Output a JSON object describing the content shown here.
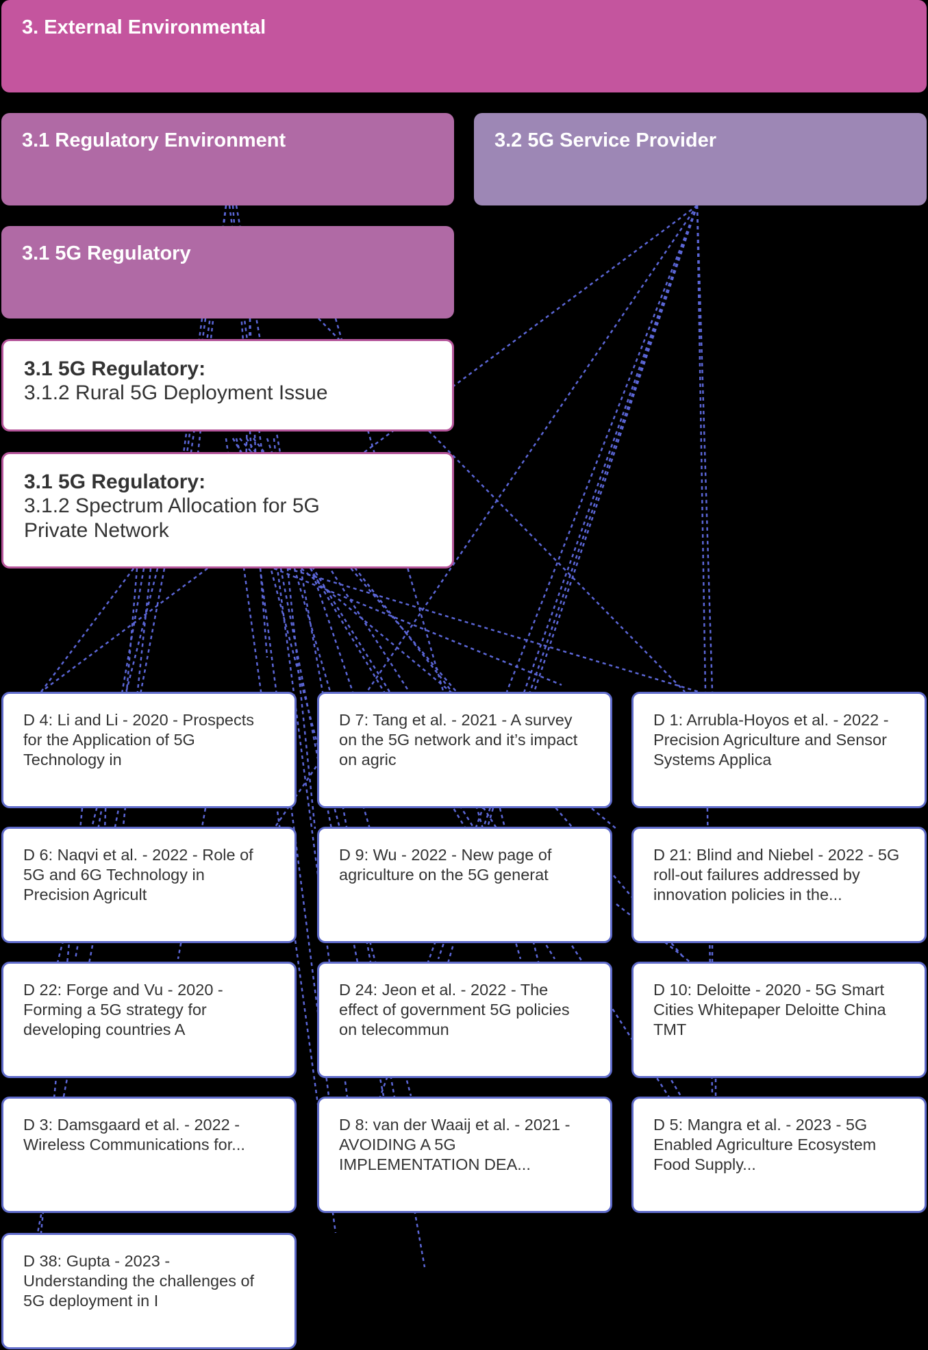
{
  "categories": {
    "external": "3. External Environmental",
    "regulatory_env": "3.1 Regulatory Environment",
    "service_provider": "3.2 5G Service Provider",
    "fiveg_regulatory": "3.1 5G Regulatory"
  },
  "topics": [
    {
      "head": "3.1 5G Regulatory:",
      "sub": "3.1.2 Rural 5G Deployment Issue"
    },
    {
      "head": "3.1 5G Regulatory:",
      "sub": "3.1.2 Spectrum Allocation for 5G\n       Private Network"
    }
  ],
  "documents": [
    {
      "id": "d4",
      "label": "D 4: Li and Li - 2020 - Prospects for the Application of 5G Technology in"
    },
    {
      "id": "d7",
      "label": "D 7: Tang et al. - 2021 - A survey on the 5G network and it’s impact on agric"
    },
    {
      "id": "d1",
      "label": "D 1: Arrubla-Hoyos et al. - 2022 - Precision Agriculture and Sensor Systems Applica"
    },
    {
      "id": "d6",
      "label": "D 6: Naqvi et al. - 2022 - Role of 5G and 6G Technology in Precision Agricult"
    },
    {
      "id": "d9",
      "label": "D 9: Wu - 2022 - New page of agriculture on the 5G generat"
    },
    {
      "id": "d21",
      "label": "D 21: Blind and Niebel - 2022 - 5G roll-out failures addressed by innovation policies in the..."
    },
    {
      "id": "d22",
      "label": "D 22: Forge and Vu - 2020 - Forming a 5G strategy for developing countries A"
    },
    {
      "id": "d24",
      "label": "D 24: Jeon et al. - 2022 - The effect of government 5G policies on telecommun"
    },
    {
      "id": "d10",
      "label": "D 10: Deloitte - 2020 - 5G Smart Cities Whitepaper Deloitte China TMT"
    },
    {
      "id": "d3",
      "label": "D 3: Damsgaard et al. - 2022 - Wireless Communications for..."
    },
    {
      "id": "d8",
      "label": "D 8: van der Waaij et al. - 2021 - AVOIDING A 5G IMPLEMENTATION DEA..."
    },
    {
      "id": "d5",
      "label": "D 5: Mangra et al. - 2023 - 5G Enabled Agriculture Ecosystem Food Supply..."
    },
    {
      "id": "d38",
      "label": "D 38: Gupta - 2023 - Understanding the challenges of 5G deployment in I"
    }
  ],
  "colors": {
    "background": "#000000",
    "external": "#c4559e",
    "regulatory": "#b06aa5",
    "service_provider": "#9d87b5",
    "topic_border": "#b5559a",
    "doc_border": "#5e6ac9",
    "link": "#5b66d6"
  }
}
